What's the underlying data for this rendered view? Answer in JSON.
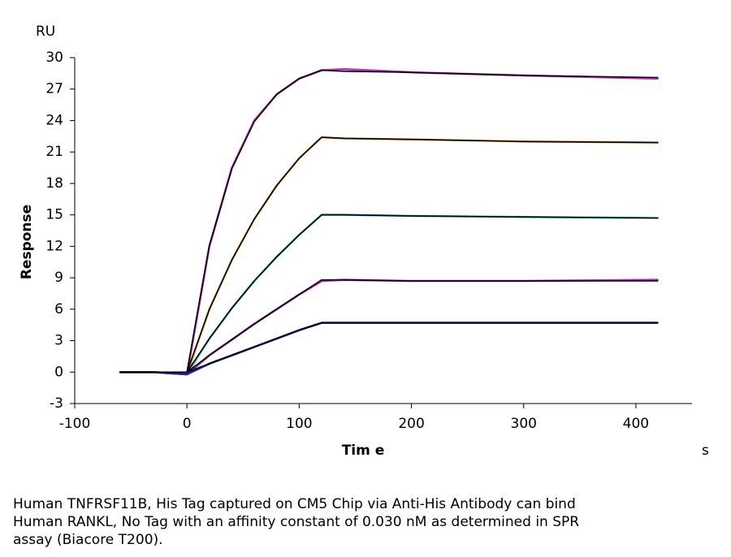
{
  "chart_data": {
    "type": "line",
    "y_unit": "RU",
    "ylabel": "Response",
    "xlabel": "Tim e",
    "x_unit": "s",
    "x": [
      -60,
      -30,
      0,
      20,
      40,
      60,
      80,
      100,
      120,
      140,
      200,
      300,
      420
    ],
    "series": [
      {
        "color": "#c02cc0",
        "values": [
          0,
          0,
          -0.2,
          12,
          19.5,
          24,
          26.5,
          28,
          28.8,
          28.9,
          28.6,
          28.3,
          28.0
        ]
      },
      {
        "color": "#e8a030",
        "values": [
          0,
          0,
          -0.2,
          6,
          10.7,
          14.6,
          17.8,
          20.4,
          22.4,
          22.3,
          22.2,
          22.0,
          21.9
        ]
      },
      {
        "color": "#30c0c8",
        "values": [
          0,
          0,
          -0.2,
          3.2,
          6.1,
          8.7,
          11,
          13.1,
          15.0,
          15.0,
          14.9,
          14.8,
          14.7
        ]
      },
      {
        "color": "#b020c0",
        "values": [
          0,
          0,
          -0.2,
          1.6,
          3.1,
          4.6,
          6.0,
          7.4,
          8.7,
          8.8,
          8.7,
          8.7,
          8.8
        ]
      },
      {
        "color": "#2020b0",
        "values": [
          0,
          0,
          -0.2,
          0.8,
          1.6,
          2.4,
          3.2,
          4.0,
          4.7,
          4.7,
          4.7,
          4.7,
          4.7
        ]
      },
      {
        "color": "#000000",
        "values": [
          0,
          0,
          0,
          12.1,
          19.4,
          23.9,
          26.5,
          28.0,
          28.8,
          28.7,
          28.6,
          28.3,
          28.1
        ]
      },
      {
        "color": "#000000",
        "values": [
          0,
          0,
          0,
          6.0,
          10.7,
          14.6,
          17.8,
          20.4,
          22.4,
          22.3,
          22.2,
          22.0,
          21.9
        ]
      },
      {
        "color": "#000000",
        "values": [
          0,
          0,
          0,
          3.2,
          6.1,
          8.7,
          11,
          13.1,
          15.0,
          15.0,
          14.9,
          14.8,
          14.7
        ]
      },
      {
        "color": "#000000",
        "values": [
          0,
          0,
          0,
          1.6,
          3.1,
          4.6,
          6.0,
          7.4,
          8.8,
          8.8,
          8.7,
          8.7,
          8.7
        ]
      },
      {
        "color": "#000000",
        "values": [
          0,
          0,
          0,
          0.8,
          1.6,
          2.4,
          3.2,
          4.0,
          4.7,
          4.7,
          4.7,
          4.7,
          4.7
        ]
      }
    ],
    "xlim": [
      -100,
      450
    ],
    "xticks": [
      -100,
      0,
      100,
      200,
      300,
      400
    ],
    "ylim": [
      -3,
      30
    ],
    "yticks": [
      -3,
      0,
      3,
      6,
      9,
      12,
      15,
      18,
      21,
      24,
      27,
      30
    ],
    "caption": [
      "Human TNFRSF11B, His Tag captured on CM5 Chip via Anti-His Antibody can bind",
      "Human RANKL, No Tag with an affinity constant of 0.030 nM as determined in SPR",
      "assay (Biacore T200)."
    ]
  }
}
